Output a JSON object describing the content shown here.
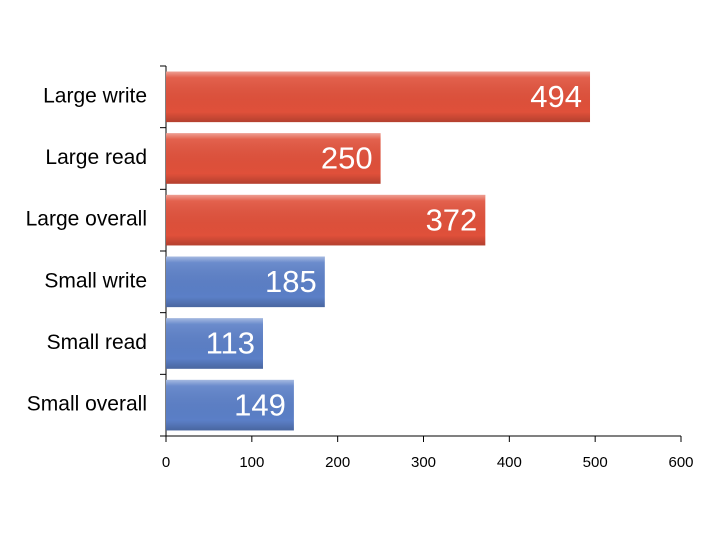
{
  "chart_data": {
    "type": "bar",
    "orientation": "horizontal",
    "categories": [
      "Large write",
      "Large read",
      "Large overall",
      "Small write",
      "Small read",
      "Small overall"
    ],
    "values": [
      494,
      250,
      372,
      185,
      113,
      149
    ],
    "colors": [
      "#e0503a",
      "#e0503a",
      "#e0503a",
      "#5b7fc7",
      "#5b7fc7",
      "#5b7fc7"
    ],
    "xlim": [
      0,
      600
    ],
    "xticks": [
      0,
      100,
      200,
      300,
      400,
      500,
      600
    ],
    "grid": false
  }
}
